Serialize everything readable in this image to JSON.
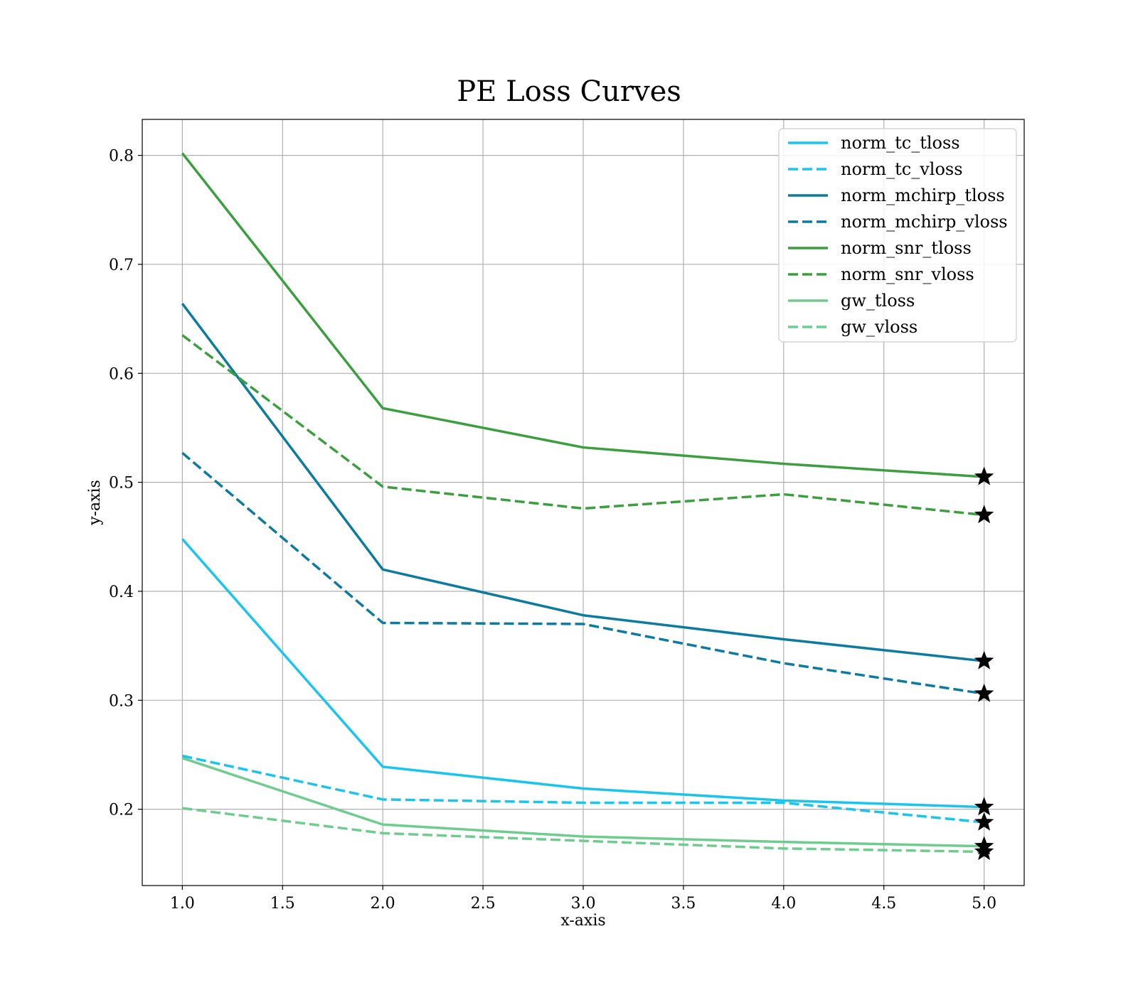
{
  "chart_data": {
    "type": "line",
    "title": "PE Loss Curves",
    "xlabel": "x-axis",
    "ylabel": "y-axis",
    "xlim": [
      0.8,
      5.2
    ],
    "ylim": [
      0.13,
      0.833
    ],
    "x_ticks": [
      1.0,
      1.5,
      2.0,
      2.5,
      3.0,
      3.5,
      4.0,
      4.5,
      5.0
    ],
    "x_tick_labels": [
      "1.0",
      "1.5",
      "2.0",
      "2.5",
      "3.0",
      "3.5",
      "4.0",
      "4.5",
      "5.0"
    ],
    "y_ticks": [
      0.2,
      0.3,
      0.4,
      0.5,
      0.6,
      0.7,
      0.8
    ],
    "y_tick_labels": [
      "0.2",
      "0.3",
      "0.4",
      "0.5",
      "0.6",
      "0.7",
      "0.8"
    ],
    "grid": true,
    "legend_position": "top-right",
    "end_marker": "star",
    "x": [
      1.0,
      2.0,
      3.0,
      4.0,
      5.0
    ],
    "series": [
      {
        "name": "norm_tc_tloss",
        "values": [
          0.448,
          0.239,
          0.219,
          0.208,
          0.202
        ],
        "color": "#19c5ec",
        "dash": "solid"
      },
      {
        "name": "norm_tc_vloss",
        "values": [
          0.249,
          0.209,
          0.206,
          0.206,
          0.188
        ],
        "color": "#19c5ec",
        "dash": "dashed"
      },
      {
        "name": "norm_mchirp_tloss",
        "values": [
          0.664,
          0.42,
          0.378,
          0.356,
          0.336
        ],
        "color": "#0b7ba0",
        "dash": "solid"
      },
      {
        "name": "norm_mchirp_vloss",
        "values": [
          0.527,
          0.371,
          0.37,
          0.334,
          0.306
        ],
        "color": "#0b7ba0",
        "dash": "dashed"
      },
      {
        "name": "norm_snr_tloss",
        "values": [
          0.802,
          0.568,
          0.532,
          0.517,
          0.505
        ],
        "color": "#3b9f3f",
        "dash": "solid"
      },
      {
        "name": "norm_snr_vloss",
        "values": [
          0.635,
          0.496,
          0.476,
          0.489,
          0.47
        ],
        "color": "#3b9f3f",
        "dash": "dashed"
      },
      {
        "name": "gw_tloss",
        "values": [
          0.247,
          0.186,
          0.175,
          0.17,
          0.166
        ],
        "color": "#6ecd8e",
        "dash": "solid"
      },
      {
        "name": "gw_vloss",
        "values": [
          0.201,
          0.178,
          0.171,
          0.164,
          0.161
        ],
        "color": "#6ecd8e",
        "dash": "dashed"
      }
    ]
  }
}
